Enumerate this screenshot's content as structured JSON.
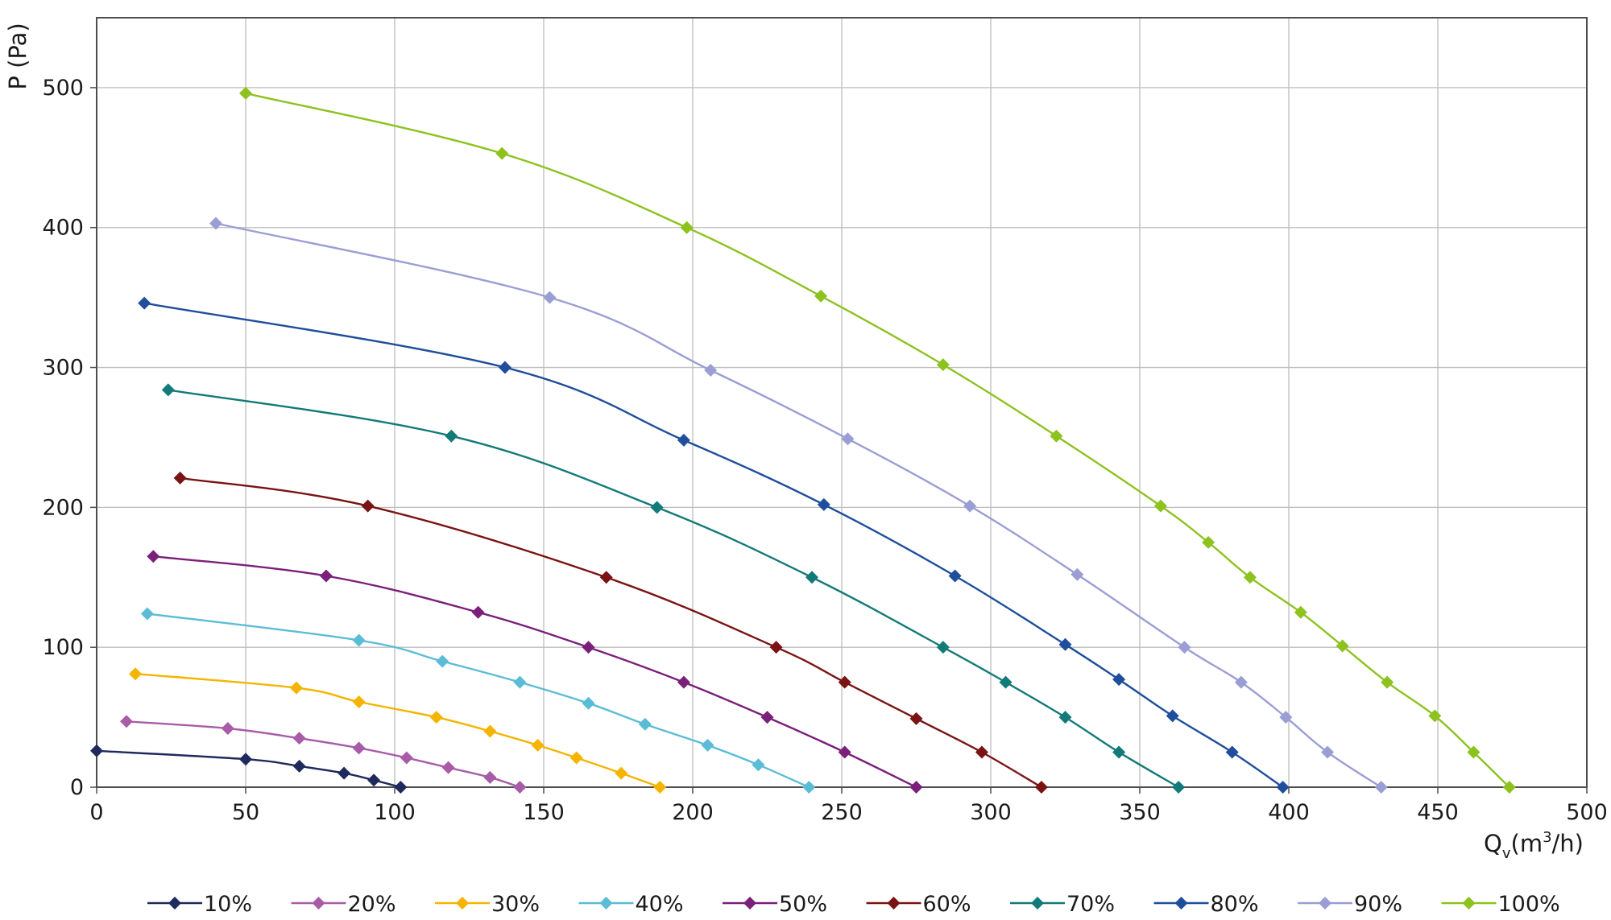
{
  "chart_data": {
    "type": "line",
    "title": "",
    "xlabel": {
      "main": "Q",
      "subscript": "v",
      "unit_open": "(m",
      "superscript": "3",
      "unit_close": "/h)"
    },
    "ylabel": "P (Pa)",
    "xlim": [
      0,
      500
    ],
    "ylim": [
      0,
      550
    ],
    "xticks": [
      0,
      50,
      100,
      150,
      200,
      250,
      300,
      350,
      400,
      450,
      500
    ],
    "yticks": [
      0,
      100,
      200,
      300,
      400,
      500
    ],
    "xtick_labels": [
      "0",
      "50",
      "100",
      "150",
      "200",
      "250",
      "300",
      "350",
      "400",
      "450",
      "500"
    ],
    "ytick_labels": [
      "0",
      "100",
      "200",
      "300",
      "400",
      "500"
    ],
    "grid": true,
    "legend_position": "bottom",
    "marker": "diamond",
    "series": [
      {
        "name": "10%",
        "color": "#1f2a5c",
        "x": [
          0,
          50,
          68,
          83,
          93,
          102
        ],
        "y": [
          26,
          20,
          15,
          10,
          5,
          0
        ]
      },
      {
        "name": "20%",
        "color": "#a85ca8",
        "x": [
          10,
          44,
          68,
          88,
          104,
          118,
          132,
          142
        ],
        "y": [
          47,
          42,
          35,
          28,
          21,
          14,
          7,
          0
        ]
      },
      {
        "name": "30%",
        "color": "#f5b400",
        "x": [
          13,
          67,
          88,
          114,
          132,
          148,
          161,
          176,
          189
        ],
        "y": [
          81,
          71,
          61,
          50,
          40,
          30,
          21,
          10,
          0
        ]
      },
      {
        "name": "40%",
        "color": "#5bbcd6",
        "x": [
          17,
          88,
          116,
          142,
          165,
          184,
          205,
          222,
          239
        ],
        "y": [
          124,
          105,
          90,
          75,
          60,
          45,
          30,
          16,
          0
        ]
      },
      {
        "name": "50%",
        "color": "#7a1f7a",
        "x": [
          19,
          77,
          128,
          165,
          197,
          225,
          251,
          275
        ],
        "y": [
          165,
          151,
          125,
          100,
          75,
          50,
          25,
          0
        ]
      },
      {
        "name": "60%",
        "color": "#7a1414",
        "x": [
          28,
          91,
          171,
          228,
          251,
          275,
          297,
          317
        ],
        "y": [
          221,
          201,
          150,
          100,
          75,
          49,
          25,
          0
        ]
      },
      {
        "name": "70%",
        "color": "#127a78",
        "x": [
          24,
          119,
          188,
          240,
          284,
          305,
          325,
          343,
          363
        ],
        "y": [
          284,
          251,
          200,
          150,
          100,
          75,
          50,
          25,
          0
        ]
      },
      {
        "name": "80%",
        "color": "#1f4e9c",
        "x": [
          16,
          137,
          197,
          244,
          288,
          325,
          343,
          361,
          381,
          398
        ],
        "y": [
          346,
          300,
          248,
          202,
          151,
          102,
          77,
          51,
          25,
          0
        ]
      },
      {
        "name": "90%",
        "color": "#9a9ed4",
        "x": [
          40,
          152,
          206,
          252,
          293,
          329,
          365,
          384,
          399,
          413,
          431
        ],
        "y": [
          403,
          350,
          298,
          249,
          201,
          152,
          100,
          75,
          50,
          25,
          0
        ]
      },
      {
        "name": "100%",
        "color": "#8dc21f",
        "x": [
          50,
          136,
          198,
          243,
          284,
          322,
          357,
          373,
          387,
          404,
          418,
          433,
          449,
          462,
          474
        ],
        "y": [
          496,
          453,
          400,
          351,
          302,
          251,
          201,
          175,
          150,
          125,
          101,
          75,
          51,
          25,
          0
        ]
      }
    ]
  }
}
